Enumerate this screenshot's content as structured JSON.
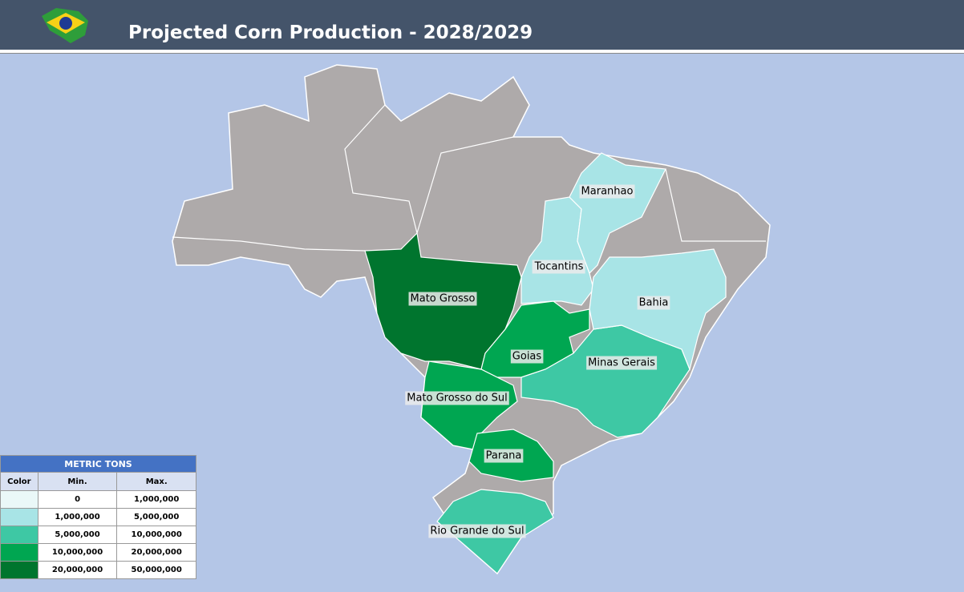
{
  "header": {
    "title": "Projected Corn Production - 2028/2029"
  },
  "map": {
    "regions": [
      {
        "label": "Mato Grosso",
        "color": "#00752e"
      },
      {
        "label": "Goias",
        "color": "#00a651"
      },
      {
        "label": "Mato Grosso do Sul",
        "color": "#00a651"
      },
      {
        "label": "Parana",
        "color": "#00a651"
      },
      {
        "label": "Minas Gerais",
        "color": "#3ec8a4"
      },
      {
        "label": "Rio Grande do Sul",
        "color": "#3ec8a4"
      },
      {
        "label": "Tocantins",
        "color": "#a8e4e6"
      },
      {
        "label": "Maranhao",
        "color": "#a8e4e6"
      },
      {
        "label": "Bahia",
        "color": "#a8e4e6"
      }
    ]
  },
  "legend": {
    "title": "METRIC TONS",
    "columns": [
      "Color",
      "Min.",
      "Max."
    ],
    "rows": [
      {
        "color": "#eaf8f8",
        "min": "0",
        "max": "1,000,000"
      },
      {
        "color": "#a8e4e6",
        "min": "1,000,000",
        "max": "5,000,000"
      },
      {
        "color": "#3ec8a4",
        "min": "5,000,000",
        "max": "10,000,000"
      },
      {
        "color": "#00a651",
        "min": "10,000,000",
        "max": "20,000,000"
      },
      {
        "color": "#00752e",
        "min": "20,000,000",
        "max": "50,000,000"
      }
    ]
  }
}
